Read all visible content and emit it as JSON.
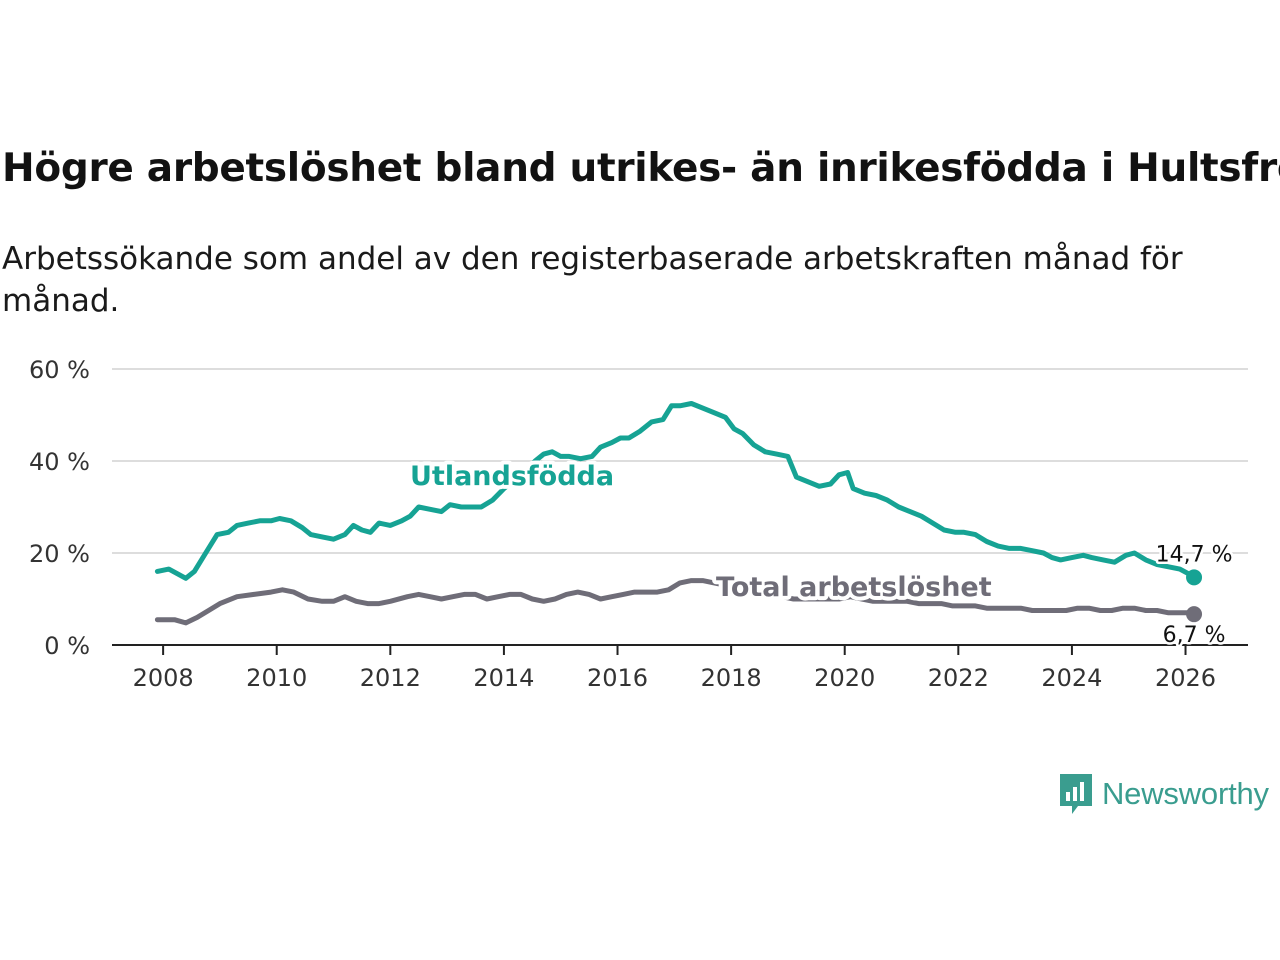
{
  "title": "Högre arbetslöshet bland utrikes- än inrikesfödda i Hultsfred",
  "subtitle": "Arbetssökande som andel av den registerbaserade arbetskraften månad för månad.",
  "brand": "Newsworthy",
  "colors": {
    "foreign": "#16a394",
    "total": "#6f6d78",
    "grid": "#dddddd",
    "axis": "#222222",
    "brand": "#3a9d8f"
  },
  "chart_data": {
    "type": "line",
    "title": "Högre arbetslöshet bland utrikes- än inrikesfödda i Hultsfred",
    "xlabel": "",
    "ylabel": "",
    "xlim": [
      2007.1,
      2027.1
    ],
    "ylim": [
      0,
      60
    ],
    "x_ticks": [
      2008,
      2010,
      2012,
      2014,
      2016,
      2018,
      2020,
      2022,
      2024,
      2026
    ],
    "y_ticks": [
      0,
      20,
      40,
      60
    ],
    "y_tick_labels": [
      "0 %",
      "20 %",
      "40 %",
      "60 %"
    ],
    "grid": true,
    "series": [
      {
        "name": "Utlandsfödda",
        "end_label": "14,7 %",
        "points": [
          [
            2007.9,
            16
          ],
          [
            2008.1,
            16.5
          ],
          [
            2008.25,
            15.5
          ],
          [
            2008.4,
            14.5
          ],
          [
            2008.55,
            16
          ],
          [
            2008.75,
            20
          ],
          [
            2008.95,
            24
          ],
          [
            2009.15,
            24.5
          ],
          [
            2009.3,
            26
          ],
          [
            2009.5,
            26.5
          ],
          [
            2009.7,
            27
          ],
          [
            2009.9,
            27
          ],
          [
            2010.05,
            27.5
          ],
          [
            2010.25,
            27
          ],
          [
            2010.45,
            25.5
          ],
          [
            2010.6,
            24
          ],
          [
            2010.8,
            23.5
          ],
          [
            2011.0,
            23
          ],
          [
            2011.2,
            24
          ],
          [
            2011.35,
            26
          ],
          [
            2011.5,
            25
          ],
          [
            2011.65,
            24.5
          ],
          [
            2011.8,
            26.5
          ],
          [
            2012.0,
            26
          ],
          [
            2012.2,
            27
          ],
          [
            2012.35,
            28
          ],
          [
            2012.5,
            30
          ],
          [
            2012.7,
            29.5
          ],
          [
            2012.9,
            29
          ],
          [
            2013.05,
            30.5
          ],
          [
            2013.25,
            30
          ],
          [
            2013.45,
            30
          ],
          [
            2013.6,
            30
          ],
          [
            2013.8,
            31.5
          ],
          [
            2014.0,
            34
          ],
          [
            2014.2,
            36
          ],
          [
            2014.4,
            38
          ],
          [
            2014.55,
            40
          ],
          [
            2014.7,
            41.5
          ],
          [
            2014.85,
            42
          ],
          [
            2015.0,
            41
          ],
          [
            2015.15,
            41
          ],
          [
            2015.35,
            40.5
          ],
          [
            2015.55,
            41
          ],
          [
            2015.7,
            43
          ],
          [
            2015.9,
            44
          ],
          [
            2016.05,
            45
          ],
          [
            2016.2,
            45
          ],
          [
            2016.4,
            46.5
          ],
          [
            2016.6,
            48.5
          ],
          [
            2016.8,
            49
          ],
          [
            2016.95,
            52
          ],
          [
            2017.1,
            52
          ],
          [
            2017.3,
            52.5
          ],
          [
            2017.5,
            51.5
          ],
          [
            2017.7,
            50.5
          ],
          [
            2017.9,
            49.5
          ],
          [
            2018.05,
            47
          ],
          [
            2018.2,
            46
          ],
          [
            2018.4,
            43.5
          ],
          [
            2018.6,
            42
          ],
          [
            2018.8,
            41.5
          ],
          [
            2019.0,
            41
          ],
          [
            2019.15,
            36.5
          ],
          [
            2019.35,
            35.5
          ],
          [
            2019.55,
            34.5
          ],
          [
            2019.75,
            35
          ],
          [
            2019.9,
            37
          ],
          [
            2020.05,
            37.5
          ],
          [
            2020.15,
            34
          ],
          [
            2020.35,
            33
          ],
          [
            2020.55,
            32.5
          ],
          [
            2020.75,
            31.5
          ],
          [
            2020.95,
            30
          ],
          [
            2021.15,
            29
          ],
          [
            2021.35,
            28
          ],
          [
            2021.55,
            26.5
          ],
          [
            2021.75,
            25
          ],
          [
            2021.95,
            24.5
          ],
          [
            2022.1,
            24.5
          ],
          [
            2022.3,
            24
          ],
          [
            2022.5,
            22.5
          ],
          [
            2022.7,
            21.5
          ],
          [
            2022.9,
            21
          ],
          [
            2023.1,
            21
          ],
          [
            2023.3,
            20.5
          ],
          [
            2023.5,
            20
          ],
          [
            2023.65,
            19
          ],
          [
            2023.8,
            18.5
          ],
          [
            2024.0,
            19
          ],
          [
            2024.2,
            19.5
          ],
          [
            2024.35,
            19
          ],
          [
            2024.55,
            18.5
          ],
          [
            2024.75,
            18
          ],
          [
            2024.95,
            19.5
          ],
          [
            2025.1,
            20
          ],
          [
            2025.3,
            18.5
          ],
          [
            2025.5,
            17.5
          ],
          [
            2025.7,
            17
          ],
          [
            2025.9,
            16.5
          ],
          [
            2026.05,
            15.5
          ],
          [
            2026.15,
            14.7
          ]
        ]
      },
      {
        "name": "Total arbetslöshet",
        "end_label": "6,7 %",
        "points": [
          [
            2007.9,
            5.5
          ],
          [
            2008.2,
            5.5
          ],
          [
            2008.4,
            4.8
          ],
          [
            2008.6,
            6
          ],
          [
            2008.8,
            7.5
          ],
          [
            2009.0,
            9
          ],
          [
            2009.3,
            10.5
          ],
          [
            2009.6,
            11
          ],
          [
            2009.9,
            11.5
          ],
          [
            2010.1,
            12
          ],
          [
            2010.3,
            11.5
          ],
          [
            2010.55,
            10
          ],
          [
            2010.8,
            9.5
          ],
          [
            2011.0,
            9.5
          ],
          [
            2011.2,
            10.5
          ],
          [
            2011.4,
            9.5
          ],
          [
            2011.6,
            9
          ],
          [
            2011.8,
            9
          ],
          [
            2012.0,
            9.5
          ],
          [
            2012.3,
            10.5
          ],
          [
            2012.5,
            11
          ],
          [
            2012.7,
            10.5
          ],
          [
            2012.9,
            10
          ],
          [
            2013.1,
            10.5
          ],
          [
            2013.3,
            11
          ],
          [
            2013.5,
            11
          ],
          [
            2013.7,
            10
          ],
          [
            2013.9,
            10.5
          ],
          [
            2014.1,
            11
          ],
          [
            2014.3,
            11
          ],
          [
            2014.5,
            10
          ],
          [
            2014.7,
            9.5
          ],
          [
            2014.9,
            10
          ],
          [
            2015.1,
            11
          ],
          [
            2015.3,
            11.5
          ],
          [
            2015.5,
            11
          ],
          [
            2015.7,
            10
          ],
          [
            2015.9,
            10.5
          ],
          [
            2016.1,
            11
          ],
          [
            2016.3,
            11.5
          ],
          [
            2016.5,
            11.5
          ],
          [
            2016.7,
            11.5
          ],
          [
            2016.9,
            12
          ],
          [
            2017.1,
            13.5
          ],
          [
            2017.3,
            14
          ],
          [
            2017.5,
            14
          ],
          [
            2017.7,
            13.5
          ],
          [
            2017.9,
            13
          ],
          [
            2018.1,
            12
          ],
          [
            2018.3,
            11.5
          ],
          [
            2018.5,
            11
          ],
          [
            2018.7,
            10.5
          ],
          [
            2018.9,
            10.5
          ],
          [
            2019.1,
            10
          ],
          [
            2019.3,
            10
          ],
          [
            2019.5,
            10
          ],
          [
            2019.7,
            10
          ],
          [
            2019.9,
            10
          ],
          [
            2020.1,
            10.5
          ],
          [
            2020.3,
            10
          ],
          [
            2020.5,
            9.5
          ],
          [
            2020.7,
            9.5
          ],
          [
            2020.9,
            9.5
          ],
          [
            2021.1,
            9.5
          ],
          [
            2021.3,
            9
          ],
          [
            2021.5,
            9
          ],
          [
            2021.7,
            9
          ],
          [
            2021.9,
            8.5
          ],
          [
            2022.1,
            8.5
          ],
          [
            2022.3,
            8.5
          ],
          [
            2022.5,
            8
          ],
          [
            2022.7,
            8
          ],
          [
            2022.9,
            8
          ],
          [
            2023.1,
            8
          ],
          [
            2023.3,
            7.5
          ],
          [
            2023.5,
            7.5
          ],
          [
            2023.7,
            7.5
          ],
          [
            2023.9,
            7.5
          ],
          [
            2024.1,
            8
          ],
          [
            2024.3,
            8
          ],
          [
            2024.5,
            7.5
          ],
          [
            2024.7,
            7.5
          ],
          [
            2024.9,
            8
          ],
          [
            2025.1,
            8
          ],
          [
            2025.3,
            7.5
          ],
          [
            2025.5,
            7.5
          ],
          [
            2025.7,
            7
          ],
          [
            2025.9,
            7
          ],
          [
            2026.05,
            7
          ],
          [
            2026.15,
            6.7
          ]
        ]
      }
    ]
  }
}
